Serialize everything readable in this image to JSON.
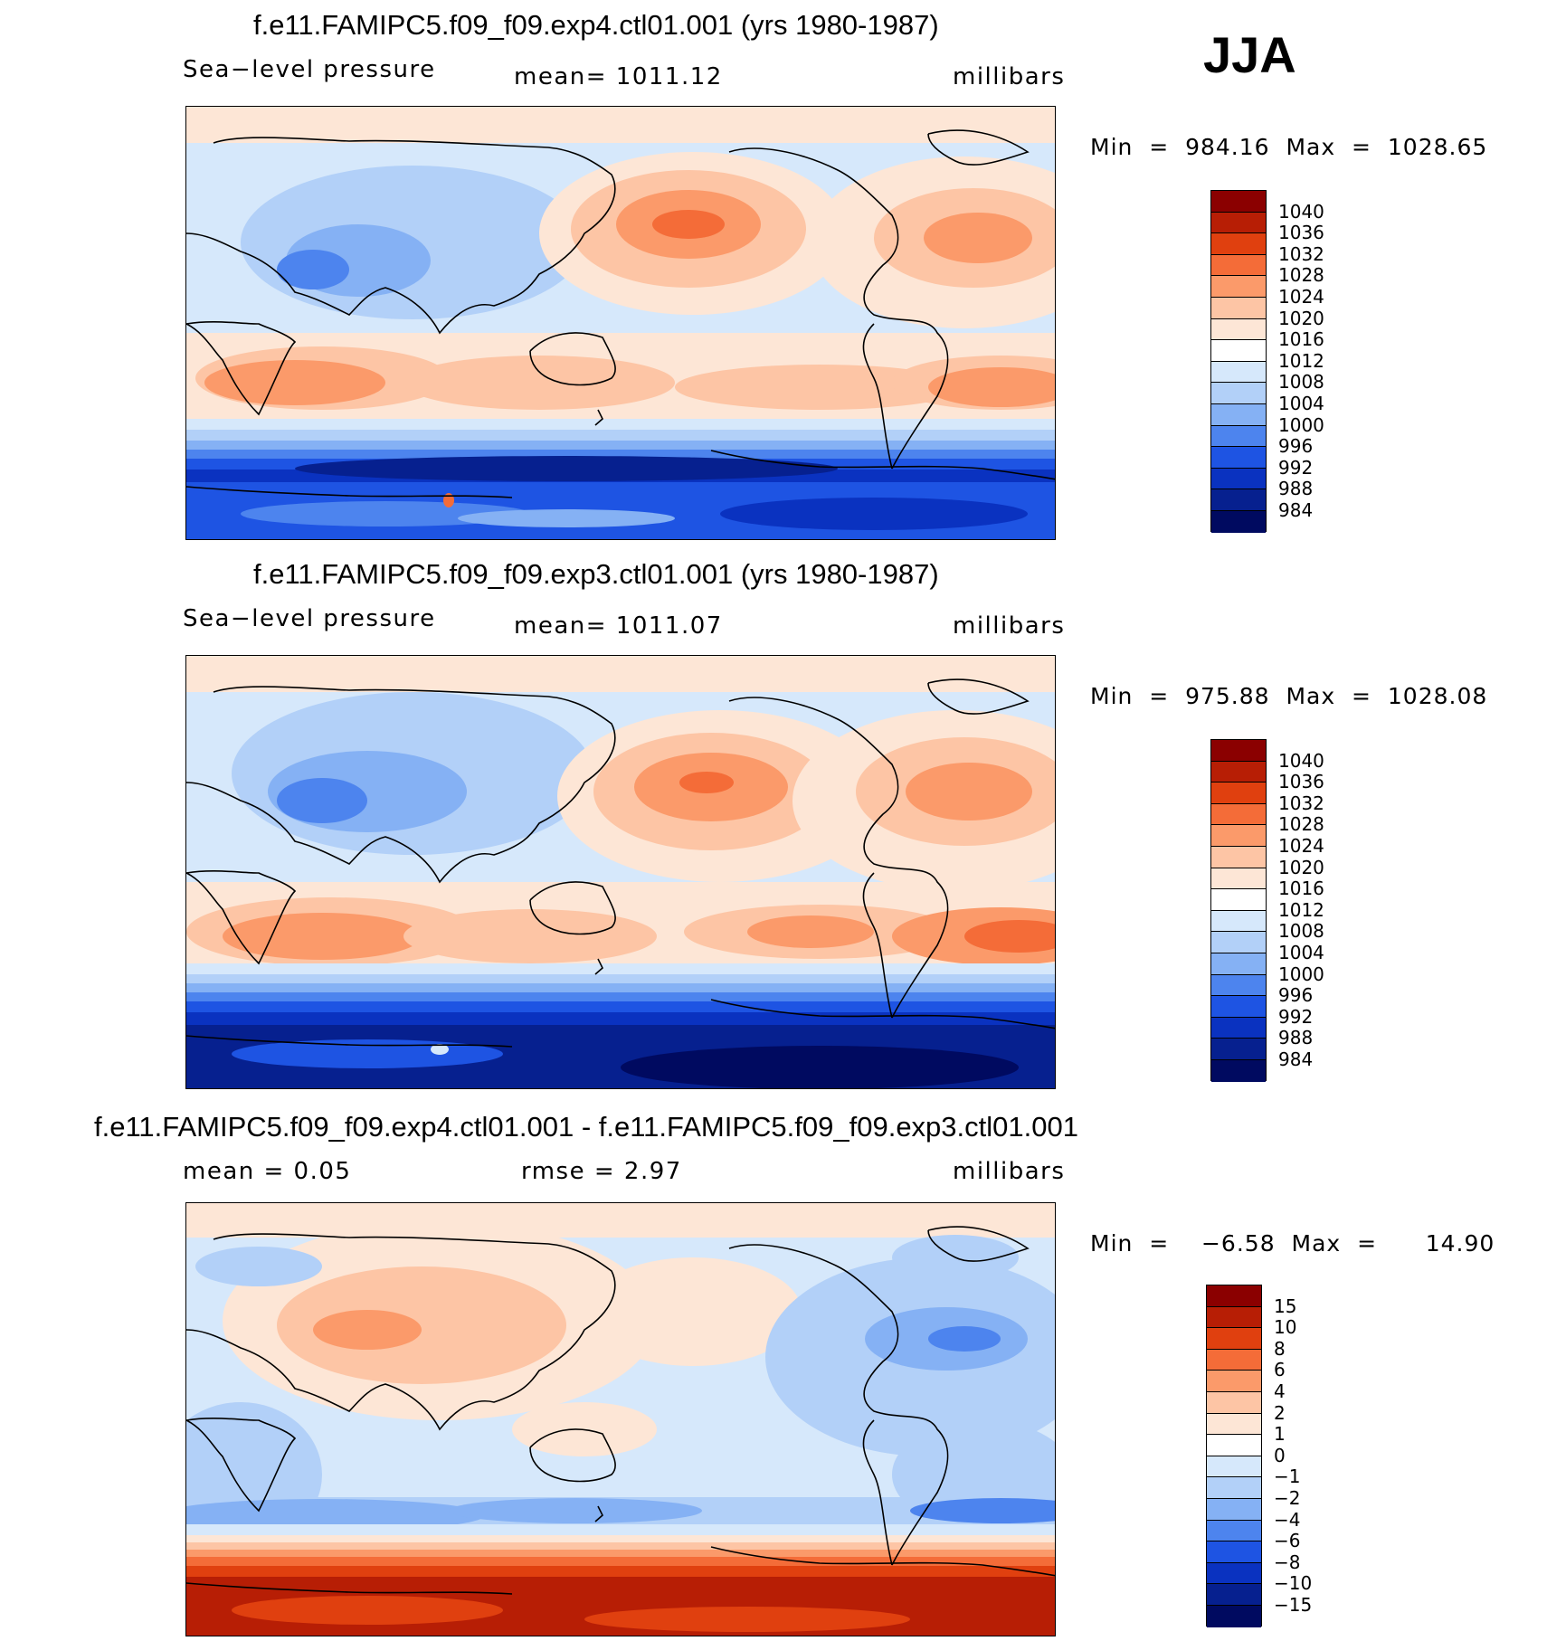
{
  "season": "JJA",
  "panels": [
    {
      "title": "f.e11.FAMIPC5.f09_f09.exp4.ctl01.001 (yrs 1980-1987)",
      "left_label": "Sea−level  pressure",
      "center_label": "mean=  1011.12",
      "units": "millibars",
      "minmax": "Min  =  984.16  Max  =  1028.65",
      "colorbar": {
        "levels": [
          "1040",
          "1036",
          "1032",
          "1028",
          "1024",
          "1020",
          "1016",
          "1012",
          "1008",
          "1004",
          "1000",
          "996",
          "992",
          "988",
          "984"
        ],
        "colors": [
          "#8b0000",
          "#b71e05",
          "#e0400f",
          "#f46c38",
          "#fb9a6a",
          "#fdc5a5",
          "#fde6d6",
          "#ffffff",
          "#d6e8fb",
          "#b2d0f8",
          "#85b1f4",
          "#4d84ee",
          "#1e54e3",
          "#0a32c0",
          "#06208f",
          "#000a60"
        ]
      }
    },
    {
      "title": "f.e11.FAMIPC5.f09_f09.exp3.ctl01.001 (yrs 1980-1987)",
      "left_label": "Sea−level  pressure",
      "center_label": "mean=  1011.07",
      "units": "millibars",
      "minmax": "Min  =  975.88  Max  =  1028.08",
      "colorbar": {
        "levels": [
          "1040",
          "1036",
          "1032",
          "1028",
          "1024",
          "1020",
          "1016",
          "1012",
          "1008",
          "1004",
          "1000",
          "996",
          "992",
          "988",
          "984"
        ],
        "colors": [
          "#8b0000",
          "#b71e05",
          "#e0400f",
          "#f46c38",
          "#fb9a6a",
          "#fdc5a5",
          "#fde6d6",
          "#ffffff",
          "#d6e8fb",
          "#b2d0f8",
          "#85b1f4",
          "#4d84ee",
          "#1e54e3",
          "#0a32c0",
          "#06208f",
          "#000a60"
        ]
      }
    },
    {
      "title": "f.e11.FAMIPC5.f09_f09.exp4.ctl01.001 - f.e11.FAMIPC5.f09_f09.exp3.ctl01.001",
      "left_label": "mean  =      0.05",
      "center_label": "rmse  =      2.97",
      "units": "millibars",
      "minmax": "Min  =    −6.58  Max  =      14.90",
      "colorbar": {
        "levels": [
          "15",
          "10",
          "8",
          "6",
          "4",
          "2",
          "1",
          "0",
          "−1",
          "−2",
          "−4",
          "−6",
          "−8",
          "−10",
          "−15"
        ],
        "colors": [
          "#8b0000",
          "#b71e05",
          "#e0400f",
          "#f46c38",
          "#fb9a6a",
          "#fdc5a5",
          "#fde6d6",
          "#ffffff",
          "#d6e8fb",
          "#b2d0f8",
          "#85b1f4",
          "#4d84ee",
          "#1e54e3",
          "#0a32c0",
          "#06208f",
          "#000a60"
        ]
      }
    }
  ]
}
